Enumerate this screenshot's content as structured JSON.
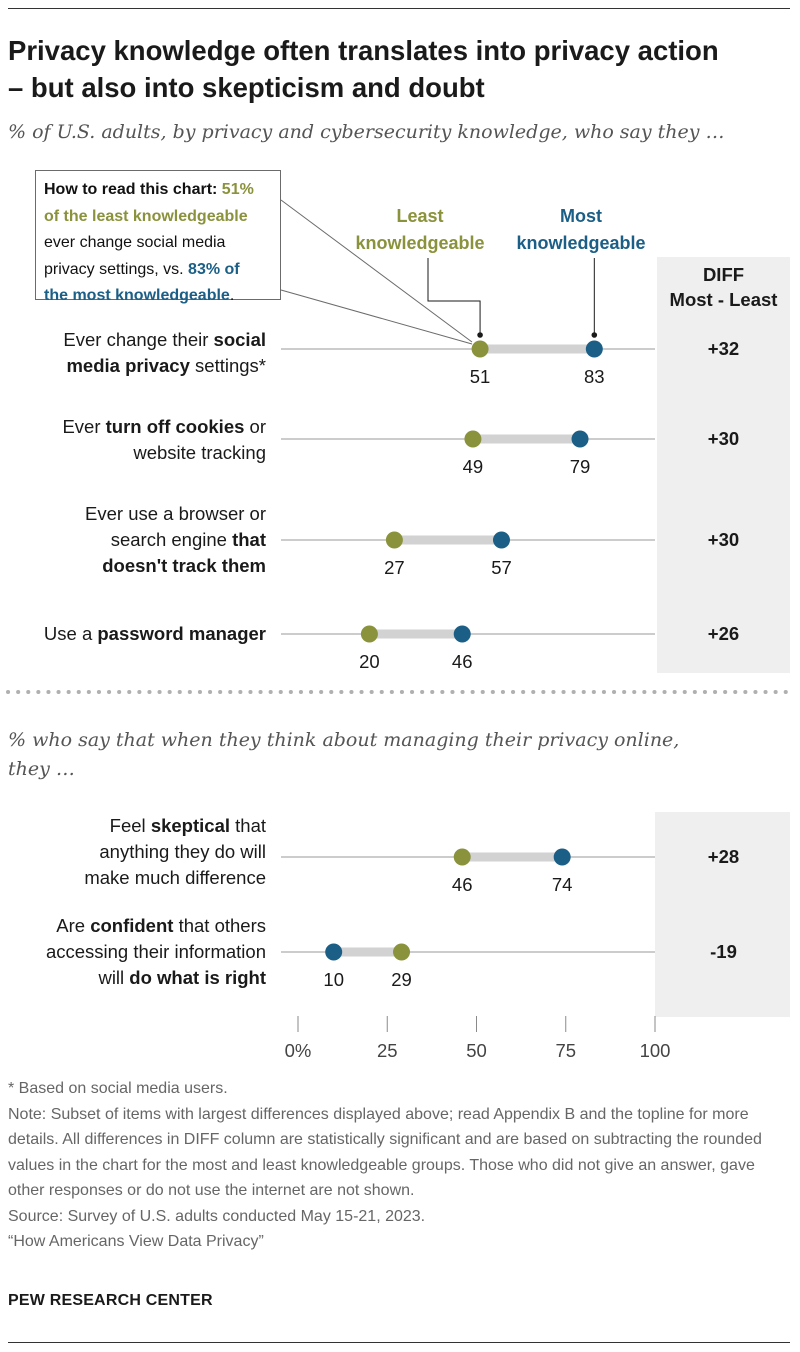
{
  "title_line1": "Privacy knowledge often translates into privacy action",
  "title_line2": "– but also into skepticism and doubt",
  "subtitle_top": "% of U.S. adults, by privacy and cybersecurity knowledge, who say they …",
  "subtitle_bottom_line1": "% who say that when they think about managing their privacy online,",
  "subtitle_bottom_line2": "they …",
  "how_to_read": {
    "lead": "How to read this chart: ",
    "pct_least": "51%",
    "least_text": "of the least knowledgeable",
    "middle_1": "ever change social media",
    "middle_2": "privacy settings, vs. ",
    "pct_most": "83% of",
    "most_text": "the most knowledgeable",
    "end": "."
  },
  "legend": {
    "least_line1": "Least",
    "least_line2": "knowledgeable",
    "most_line1": "Most",
    "most_line2": "knowledgeable",
    "least_color": "#8a923b",
    "most_color": "#1b5e86"
  },
  "diff_header": {
    "line1": "DIFF",
    "line2": "Most - Least"
  },
  "rows": [
    {
      "label_parts": [
        {
          "text": "Ever change their ",
          "bold": false
        },
        {
          "text": "social",
          "bold": true
        },
        {
          "break": true
        },
        {
          "text": "media privacy",
          "bold": true
        },
        {
          "text": " settings*",
          "bold": false
        }
      ],
      "diff": "+32"
    },
    {
      "label_parts": [
        {
          "text": "Ever ",
          "bold": false
        },
        {
          "text": "turn off cookies",
          "bold": true
        },
        {
          "text": " or",
          "bold": false
        },
        {
          "break": true
        },
        {
          "text": "website tracking",
          "bold": false
        }
      ],
      "diff": "+30"
    },
    {
      "label_parts": [
        {
          "text": "Ever use a browser or",
          "bold": false
        },
        {
          "break": true
        },
        {
          "text": "search engine ",
          "bold": false
        },
        {
          "text": "that",
          "bold": true
        },
        {
          "break": true
        },
        {
          "text": "doesn't track them",
          "bold": true
        }
      ],
      "diff": "+30"
    },
    {
      "label_parts": [
        {
          "text": "Use a ",
          "bold": false
        },
        {
          "text": "password manager",
          "bold": true
        }
      ],
      "diff": "+26"
    },
    {
      "label_parts": [
        {
          "text": "Feel ",
          "bold": false
        },
        {
          "text": "skeptical",
          "bold": true
        },
        {
          "text": " that",
          "bold": false
        },
        {
          "break": true
        },
        {
          "text": "anything they do will",
          "bold": false
        },
        {
          "break": true
        },
        {
          "text": "make much difference",
          "bold": false
        }
      ],
      "diff": "+28"
    },
    {
      "label_parts": [
        {
          "text": "Are ",
          "bold": false
        },
        {
          "text": "confident",
          "bold": true
        },
        {
          "text": " that others",
          "bold": false
        },
        {
          "break": true
        },
        {
          "text": "accessing their information",
          "bold": false
        },
        {
          "break": true
        },
        {
          "text": "will ",
          "bold": false
        },
        {
          "text": "do what is right",
          "bold": true
        }
      ],
      "diff": "-19"
    }
  ],
  "chart_data": {
    "type": "dot",
    "xlim": [
      0,
      100
    ],
    "x_ticks": [
      0,
      25,
      50,
      75,
      100
    ],
    "x_tick_labels": [
      "0%",
      "25",
      "50",
      "75",
      "100"
    ],
    "categories": [
      "Ever change their social media privacy settings*",
      "Ever turn off cookies or website tracking",
      "Ever use a browser or search engine that doesn't track them",
      "Use a password manager",
      "Feel skeptical that anything they do will make much difference",
      "Are confident that others accessing their information will do what is right"
    ],
    "series": [
      {
        "name": "Least knowledgeable",
        "color": "#8a923b",
        "values": [
          51,
          49,
          27,
          20,
          46,
          29
        ]
      },
      {
        "name": "Most knowledgeable",
        "color": "#1b5e86",
        "values": [
          83,
          79,
          57,
          46,
          74,
          10
        ]
      }
    ],
    "diff": [
      "+32",
      "+30",
      "+30",
      "+26",
      "+28",
      "-19"
    ]
  },
  "notes": [
    "* Based on social media users.",
    "Note: Subset of items with largest differences displayed above; read Appendix B and the topline for more details. All differences in DIFF column are statistically significant and are based on subtracting the rounded values in the chart for the most and least knowledgeable groups. Those who did not give an answer, gave other responses or do not use the internet are not shown.",
    "Source: Survey of U.S. adults conducted May 15-21, 2023.",
    "“How Americans View Data Privacy”"
  ],
  "brand": "PEW RESEARCH CENTER"
}
